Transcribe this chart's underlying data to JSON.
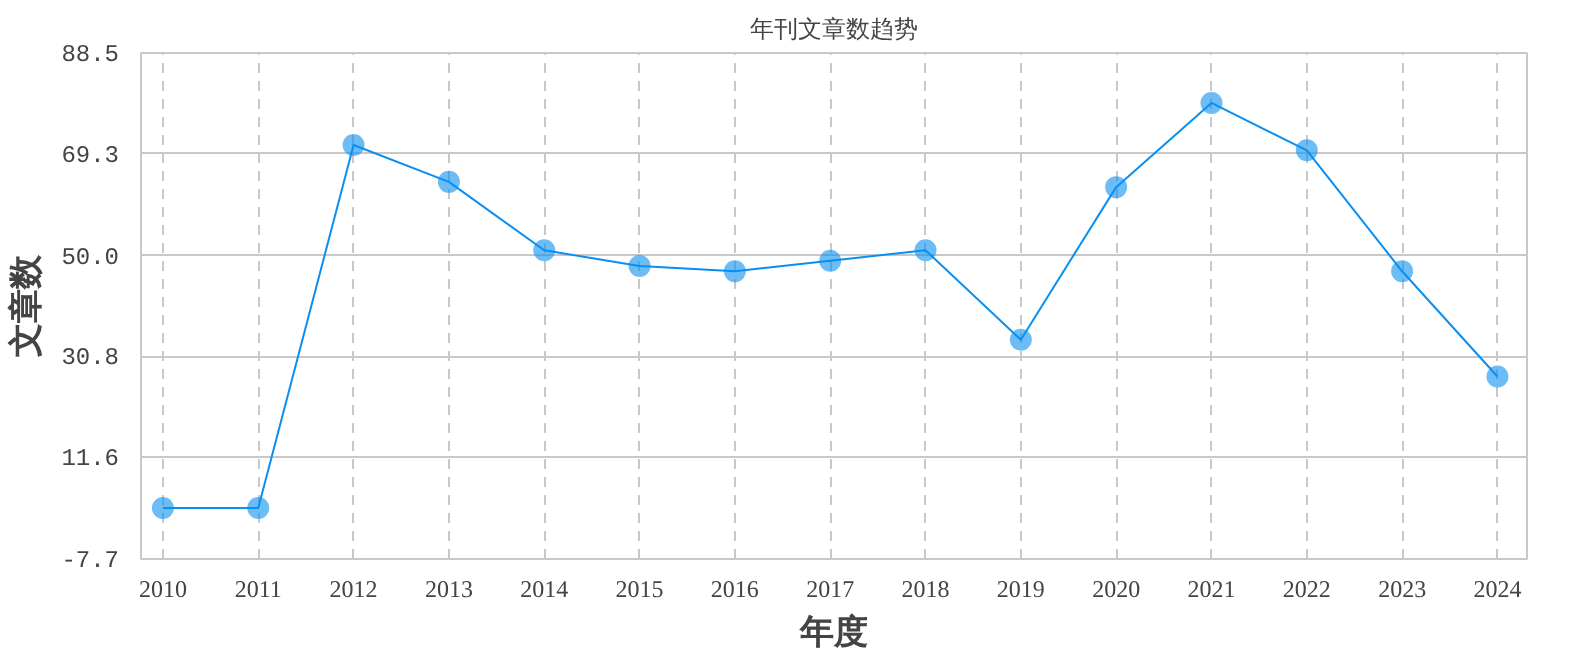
{
  "chart_data": {
    "type": "line",
    "title": "年刊文章数趋势",
    "xlabel": "年度",
    "ylabel": "文章数",
    "categories": [
      "2010",
      "2011",
      "2012",
      "2013",
      "2014",
      "2015",
      "2016",
      "2017",
      "2018",
      "2019",
      "2020",
      "2021",
      "2022",
      "2023",
      "2024"
    ],
    "series": [
      {
        "color": "#0a8ff0",
        "values": [
          2,
          2,
          71,
          64,
          51,
          48,
          47,
          49,
          51,
          34,
          63,
          79,
          70,
          47,
          27
        ]
      }
    ],
    "ylim": [
      -7.7,
      88.5
    ],
    "yticks": [
      -7.7,
      11.6,
      30.8,
      {
        "value": 50,
        "label": "50.0"
      },
      69.3,
      88.5
    ],
    "grid": true,
    "marker": "circle",
    "line_style": "solid"
  }
}
